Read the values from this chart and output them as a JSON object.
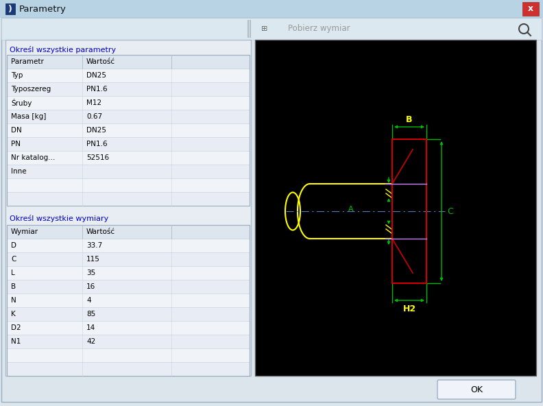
{
  "title": "Parametry",
  "title_bar_color_top": "#c8dce8",
  "title_bar_color_bot": "#a8c4d8",
  "close_btn_color": "#c03030",
  "toolbar_text": "Pobierz wymiar",
  "dialog_bg": "#dce4ec",
  "panel_bg": "#e8edf3",
  "table_header_bg": "#dde5ef",
  "table_row_bg": "#f0f4f8",
  "table_alt_bg": "#e8edf5",
  "section1_label": "Określ wszystkie parametry",
  "section2_label": "Określ wszystkie wymiary",
  "table1_header": [
    "Parametr",
    "Wartość"
  ],
  "table1_rows": [
    [
      "Typ",
      "DN25"
    ],
    [
      "Typoszereg",
      "PN1.6"
    ],
    [
      "Śruby",
      "M12"
    ],
    [
      "Masa [kg]",
      "0.67"
    ],
    [
      "DN",
      "DN25"
    ],
    [
      "PN",
      "PN1.6"
    ],
    [
      "Nr katalog...",
      "52516"
    ],
    [
      "Inne",
      ""
    ],
    [
      "",
      ""
    ],
    [
      "",
      ""
    ]
  ],
  "table2_header": [
    "Wymiar",
    "Wartość"
  ],
  "table2_rows": [
    [
      "D",
      "33.7"
    ],
    [
      "C",
      "115"
    ],
    [
      "L",
      "35"
    ],
    [
      "B",
      "16"
    ],
    [
      "N",
      "4"
    ],
    [
      "K",
      "85"
    ],
    [
      "D2",
      "14"
    ],
    [
      "N1",
      "42"
    ],
    [
      "",
      ""
    ],
    [
      "",
      ""
    ]
  ],
  "ok_btn_label": "OK",
  "cad_bg": "#000000",
  "yellow": "#ffff00",
  "green": "#00bb00",
  "red": "#cc0000",
  "lightblue": "#6688cc",
  "purple": "#cc88ff"
}
